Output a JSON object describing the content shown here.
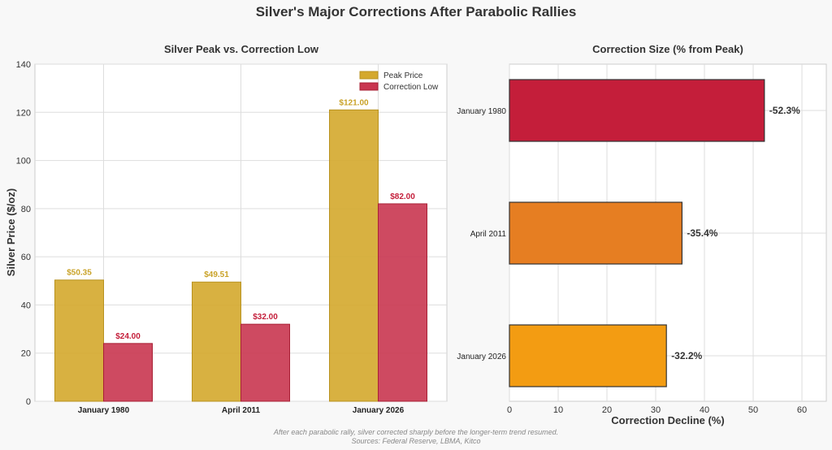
{
  "suptitle": "Silver's Major Corrections After Parabolic Rallies",
  "footnote": [
    "After each parabolic rally, silver corrected sharply before the longer-term trend resumed.",
    "Sources: Federal Reserve, LBMA, Kitco"
  ],
  "chart_data": [
    {
      "type": "bar",
      "title": "Silver Peak vs. Correction Low",
      "xlabel": "",
      "ylabel": "Silver Price ($/oz)",
      "ylim": [
        0,
        140
      ],
      "yticks": [
        0,
        20,
        40,
        60,
        80,
        100,
        120,
        140
      ],
      "grid": true,
      "legend": "top-right",
      "categories": [
        "January 1980",
        "April 2011",
        "January 2026"
      ],
      "series": [
        {
          "name": "Peak Price",
          "values": [
            50.35,
            49.51,
            121.0
          ],
          "labels": [
            "$50.35",
            "$49.51",
            "$121.00"
          ],
          "color": "#D4A82C",
          "label_color": "#C9A227"
        },
        {
          "name": "Correction Low",
          "values": [
            24.0,
            32.0,
            82.0
          ],
          "labels": [
            "$24.00",
            "$32.00",
            "$82.00"
          ],
          "color": "#C93650",
          "label_color": "#C41E3A"
        }
      ]
    },
    {
      "type": "bar",
      "orientation": "horizontal",
      "title": "Correction Size (% from Peak)",
      "xlabel": "Correction Decline (%)",
      "ylabel": "",
      "xlim": [
        0,
        65
      ],
      "xticks": [
        0,
        10,
        20,
        30,
        40,
        50,
        60
      ],
      "grid": true,
      "categories": [
        "January 1980",
        "April 2011",
        "January 2026"
      ],
      "values": [
        52.3,
        35.4,
        32.2
      ],
      "labels": [
        "-52.3%",
        "-35.4%",
        "-32.2%"
      ],
      "colors": [
        "#C41E3A",
        "#E67E22",
        "#F39C12"
      ]
    }
  ]
}
